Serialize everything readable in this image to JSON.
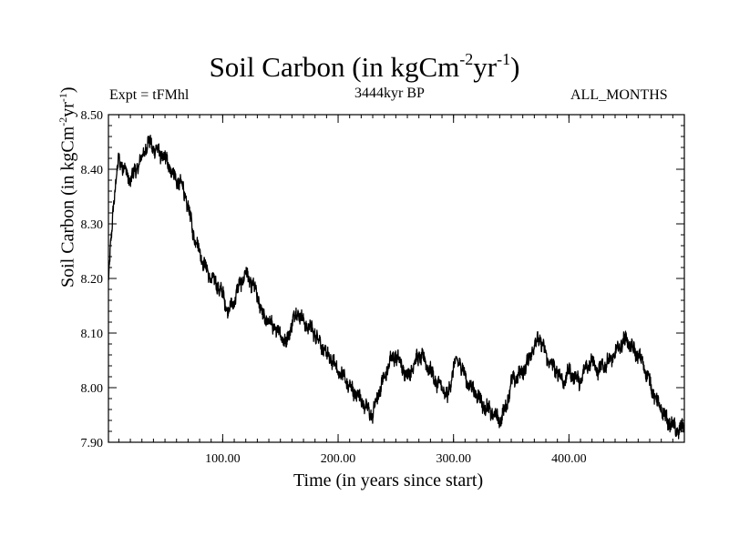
{
  "chart_data": {
    "type": "line",
    "title": "Soil Carbon (in kgCm",
    "title_sup1": "-2",
    "title_mid": "yr",
    "title_sup2": "-1",
    "title_end": ")",
    "subtitle": "3444kyr BP",
    "experiment": "Expt = tFMhl",
    "period": "ALL_MONTHS",
    "xlabel": "Time (in years since start)",
    "ylabel": "Soil Carbon (in kgCm",
    "ylabel_sup1": "-2",
    "ylabel_mid": "yr",
    "ylabel_sup2": "-1",
    "ylabel_end": ")",
    "xlim": [
      1,
      500
    ],
    "ylim": [
      7.9,
      8.5
    ],
    "x_ticks": [
      100,
      200,
      300,
      400
    ],
    "x_tick_labels": [
      "100.00",
      "200.00",
      "300.00",
      "400.00"
    ],
    "y_ticks": [
      7.9,
      8.0,
      8.1,
      8.2,
      8.3,
      8.4,
      8.5
    ],
    "y_tick_labels": [
      "7.90",
      "8.00",
      "8.10",
      "8.20",
      "8.30",
      "8.40",
      "8.50"
    ],
    "series": [
      {
        "name": "Soil Carbon",
        "color": "#000000",
        "x": [
          1,
          5,
          10,
          15,
          20,
          25,
          30,
          35,
          40,
          45,
          50,
          55,
          60,
          65,
          70,
          75,
          80,
          85,
          90,
          95,
          100,
          105,
          110,
          115,
          120,
          125,
          130,
          135,
          140,
          145,
          150,
          155,
          160,
          165,
          170,
          175,
          180,
          185,
          190,
          195,
          200,
          205,
          210,
          215,
          220,
          225,
          230,
          235,
          240,
          245,
          250,
          255,
          260,
          265,
          270,
          275,
          280,
          285,
          290,
          295,
          300,
          305,
          310,
          315,
          320,
          325,
          330,
          335,
          340,
          345,
          350,
          355,
          360,
          365,
          370,
          375,
          380,
          385,
          390,
          395,
          400,
          405,
          410,
          415,
          420,
          425,
          430,
          435,
          440,
          445,
          450,
          455,
          460,
          465,
          470,
          475,
          480,
          485,
          490,
          495,
          500
        ],
        "values": [
          8.19,
          8.33,
          8.42,
          8.4,
          8.38,
          8.4,
          8.42,
          8.45,
          8.44,
          8.43,
          8.42,
          8.4,
          8.38,
          8.37,
          8.33,
          8.28,
          8.25,
          8.22,
          8.2,
          8.19,
          8.17,
          8.14,
          8.16,
          8.19,
          8.21,
          8.19,
          8.17,
          8.13,
          8.12,
          8.11,
          8.1,
          8.08,
          8.12,
          8.14,
          8.12,
          8.11,
          8.1,
          8.08,
          8.06,
          8.05,
          8.03,
          8.02,
          8.0,
          7.99,
          7.98,
          7.96,
          7.95,
          7.99,
          8.02,
          8.05,
          8.06,
          8.04,
          8.02,
          8.04,
          8.06,
          8.05,
          8.03,
          8.01,
          8.0,
          7.98,
          8.04,
          8.05,
          8.02,
          8.0,
          7.99,
          7.97,
          7.96,
          7.95,
          7.94,
          7.96,
          8.01,
          8.02,
          8.03,
          8.05,
          8.08,
          8.09,
          8.06,
          8.04,
          8.03,
          8.01,
          8.03,
          8.02,
          8.01,
          8.04,
          8.05,
          8.03,
          8.04,
          8.05,
          8.06,
          8.08,
          8.09,
          8.07,
          8.06,
          8.04,
          8.01,
          7.98,
          7.96,
          7.94,
          7.93,
          7.92,
          7.93
        ]
      }
    ]
  }
}
